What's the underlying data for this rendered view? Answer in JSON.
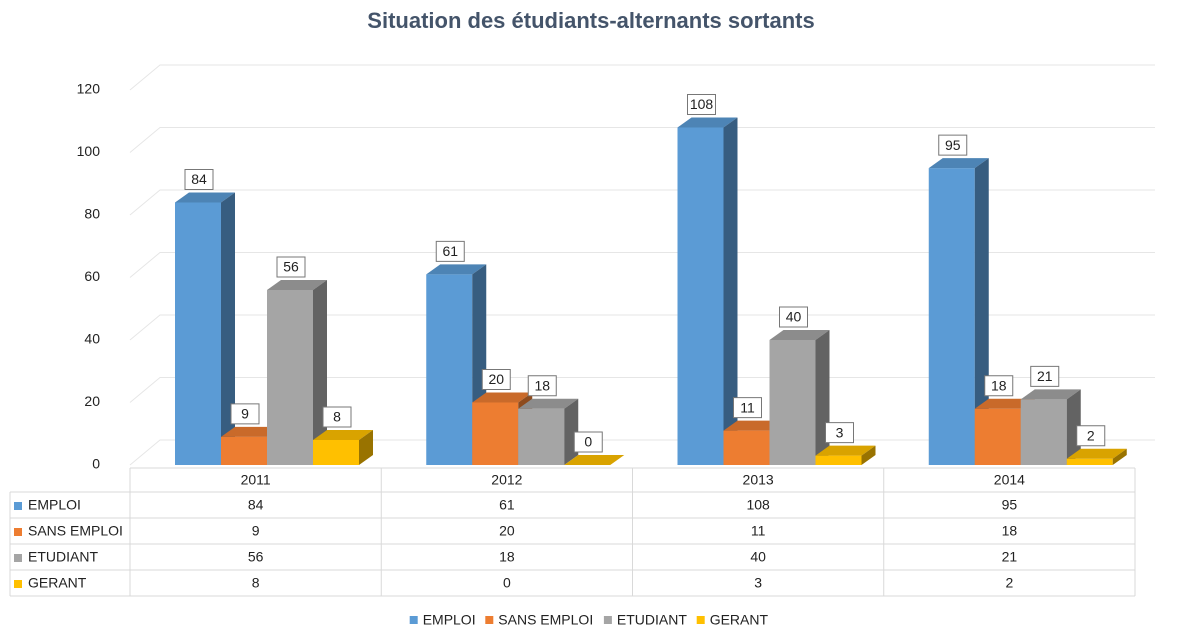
{
  "chart_data": {
    "type": "bar3d",
    "title": "Situation des étudiants-alternants sortants",
    "categories": [
      "2011",
      "2012",
      "2013",
      "2014"
    ],
    "series": [
      {
        "name": "EMPLOI",
        "color": "#5b9bd5",
        "values": [
          84,
          61,
          108,
          95
        ]
      },
      {
        "name": "SANS EMPLOI",
        "color": "#ed7d31",
        "values": [
          9,
          20,
          11,
          18
        ]
      },
      {
        "name": "ETUDIANT",
        "color": "#a5a5a5",
        "values": [
          56,
          18,
          40,
          21
        ]
      },
      {
        "name": "GERANT",
        "color": "#ffc000",
        "values": [
          8,
          0,
          3,
          2
        ]
      }
    ],
    "ylim": [
      0,
      120
    ],
    "yticks": [
      0,
      20,
      40,
      60,
      80,
      100,
      120
    ],
    "grid": true,
    "legend": "bottom"
  }
}
